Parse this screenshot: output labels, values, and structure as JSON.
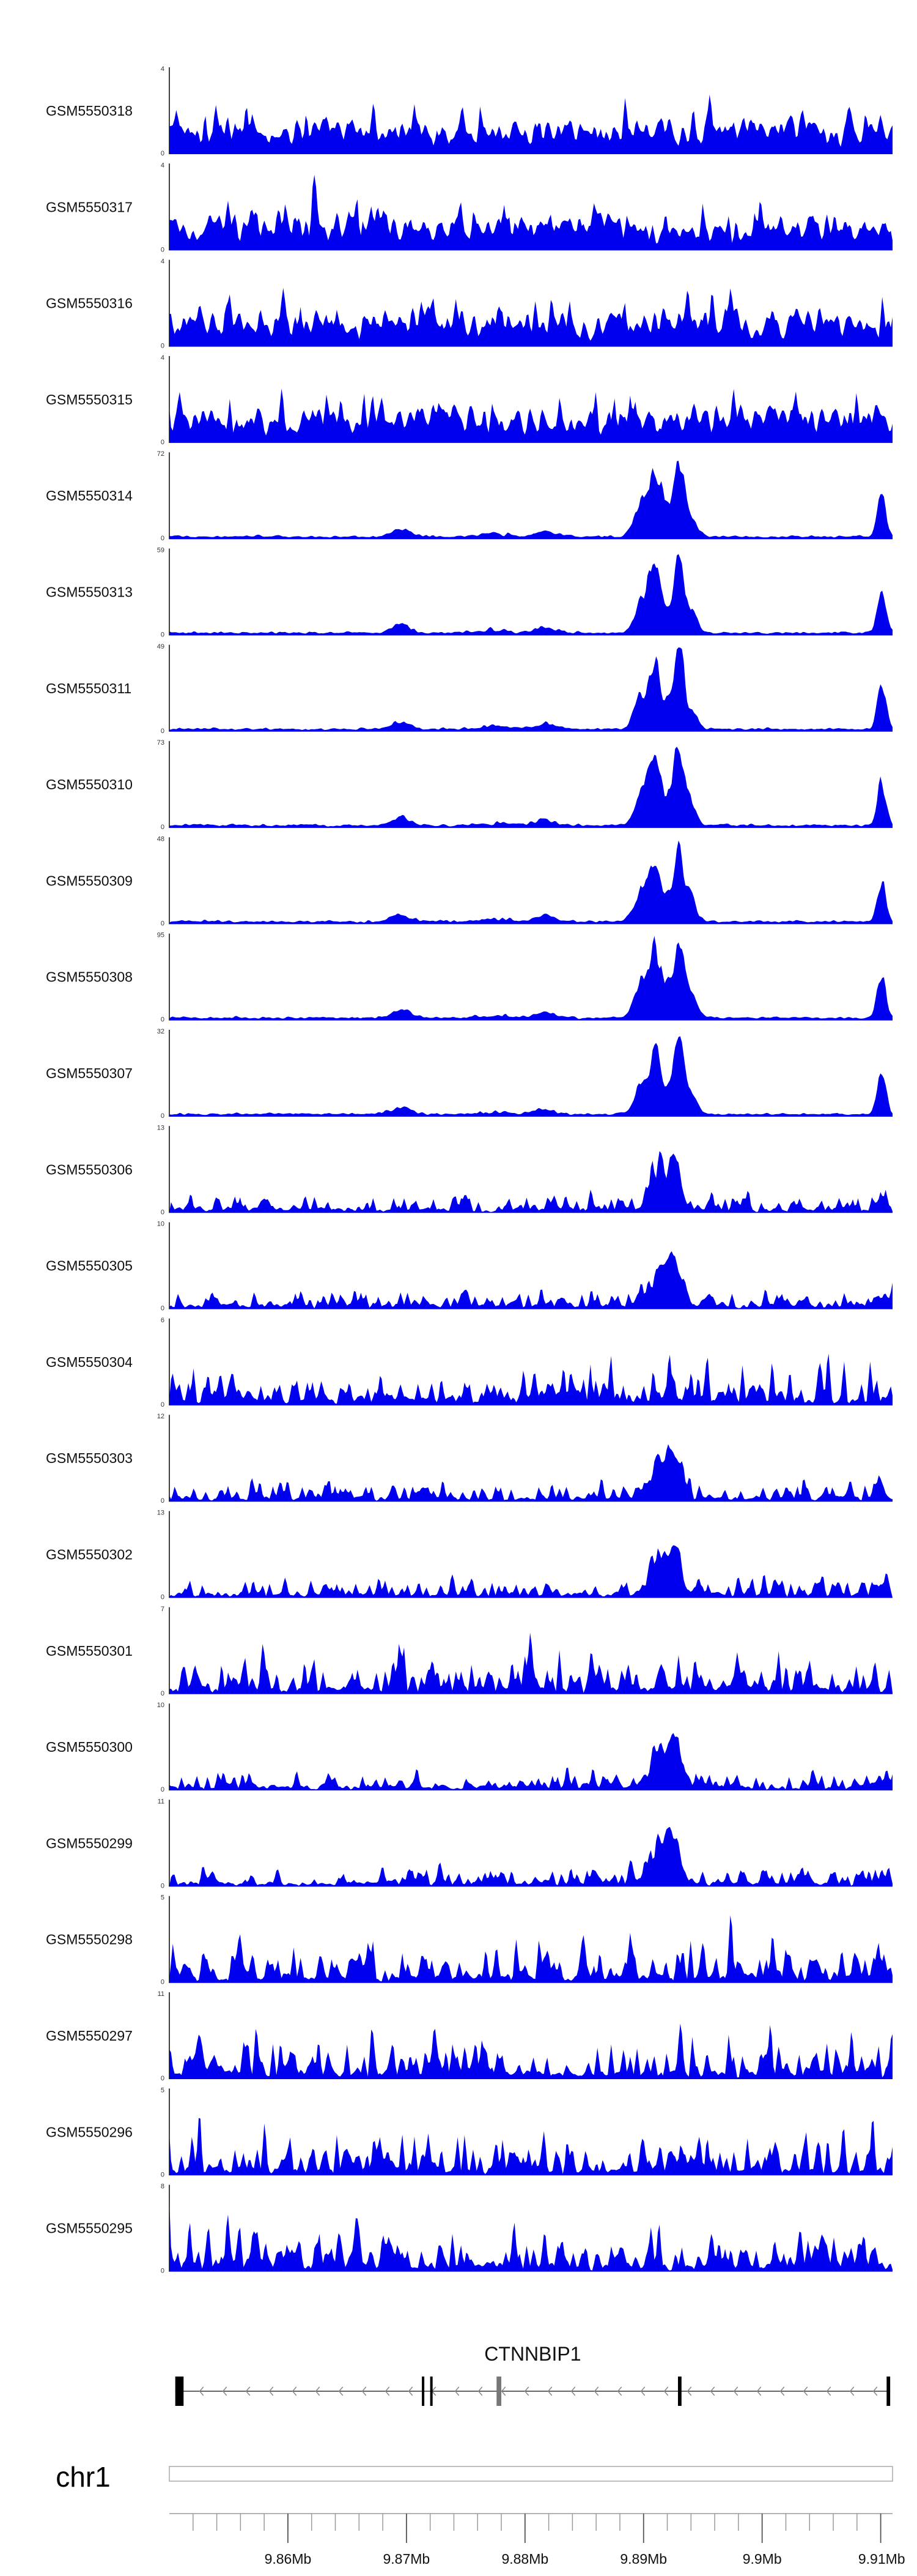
{
  "colors": {
    "signal": "#0000ee",
    "axis": "#000000",
    "gene": "#333333",
    "ruler": "#9a9a9a"
  },
  "chart_data": {
    "type": "area",
    "tracks": [
      {
        "name": "GSM5550318",
        "max": 4,
        "profile": "background"
      },
      {
        "name": "GSM5550317",
        "max": 4,
        "profile": "background"
      },
      {
        "name": "GSM5550316",
        "max": 4,
        "profile": "background"
      },
      {
        "name": "GSM5550315",
        "max": 4,
        "profile": "background"
      },
      {
        "name": "GSM5550314",
        "max": 72,
        "profile": "peaked"
      },
      {
        "name": "GSM5550313",
        "max": 59,
        "profile": "peaked"
      },
      {
        "name": "GSM5550311",
        "max": 49,
        "profile": "peaked"
      },
      {
        "name": "GSM5550310",
        "max": 73,
        "profile": "peaked"
      },
      {
        "name": "GSM5550309",
        "max": 48,
        "profile": "peaked"
      },
      {
        "name": "GSM5550308",
        "max": 95,
        "profile": "peaked"
      },
      {
        "name": "GSM5550307",
        "max": 32,
        "profile": "peaked"
      },
      {
        "name": "GSM5550306",
        "max": 13,
        "profile": "mixed"
      },
      {
        "name": "GSM5550305",
        "max": 10,
        "profile": "mixed"
      },
      {
        "name": "GSM5550304",
        "max": 6,
        "profile": "spiky"
      },
      {
        "name": "GSM5550303",
        "max": 12,
        "profile": "mixed"
      },
      {
        "name": "GSM5550302",
        "max": 13,
        "profile": "mixed"
      },
      {
        "name": "GSM5550301",
        "max": 7,
        "profile": "spiky"
      },
      {
        "name": "GSM5550300",
        "max": 10,
        "profile": "mixed"
      },
      {
        "name": "GSM5550299",
        "max": 11,
        "profile": "mixed"
      },
      {
        "name": "GSM5550298",
        "max": 5,
        "profile": "spiky"
      },
      {
        "name": "GSM5550297",
        "max": 11,
        "profile": "spiky"
      },
      {
        "name": "GSM5550296",
        "max": 5,
        "profile": "spiky"
      },
      {
        "name": "GSM5550295",
        "max": 8,
        "profile": "spiky"
      }
    ],
    "scale_min_label": "0",
    "gene": {
      "name": "CTNNBIP1",
      "start_mb": 9.8505,
      "end_mb": 9.9108,
      "strand": "-",
      "exons": [
        {
          "start_mb": 9.8505,
          "end_mb": 9.8512
        },
        {
          "start_mb": 9.8713,
          "end_mb": 9.8715
        },
        {
          "start_mb": 9.872,
          "end_mb": 9.8722
        },
        {
          "start_mb": 9.8776,
          "end_mb": 9.878
        },
        {
          "start_mb": 9.8929,
          "end_mb": 9.8932
        },
        {
          "start_mb": 9.9105,
          "end_mb": 9.9108
        }
      ]
    },
    "chromosome": "chr1",
    "xlim_mb": [
      9.85,
      9.911
    ],
    "major_ticks": [
      "9.86Mb",
      "9.87Mb",
      "9.88Mb",
      "9.89Mb",
      "9.9Mb",
      "9.91Mb"
    ],
    "major_tick_values_mb": [
      9.86,
      9.87,
      9.88,
      9.89,
      9.9,
      9.91
    ],
    "minor_tick_step_mb": 0.002
  }
}
